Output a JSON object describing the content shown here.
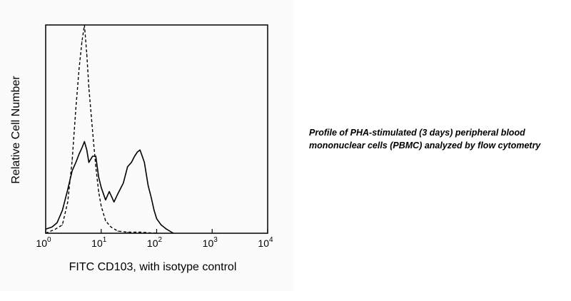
{
  "chart_data": {
    "type": "line",
    "title": "",
    "xlabel": "FITC CD103, with isotype control",
    "ylabel": "Relative Cell Number",
    "xscale": "log",
    "xlim": [
      1,
      10000
    ],
    "ylim": [
      0,
      100
    ],
    "x_ticks": [
      {
        "base": "10",
        "exp": "0",
        "value": 1
      },
      {
        "base": "10",
        "exp": "1",
        "value": 10
      },
      {
        "base": "10",
        "exp": "2",
        "value": 100
      },
      {
        "base": "10",
        "exp": "3",
        "value": 1000
      },
      {
        "base": "10",
        "exp": "4",
        "value": 10000
      }
    ],
    "grid": false,
    "legend": "none",
    "series": [
      {
        "style": "solid",
        "x": [
          1.0,
          1.3,
          1.6,
          2.0,
          2.5,
          3.0,
          3.5,
          4.0,
          4.5,
          5.0,
          5.5,
          6.0,
          7.0,
          8.0,
          9.0,
          10,
          12,
          14,
          17,
          20,
          25,
          30,
          35,
          40,
          45,
          50,
          55,
          60,
          70,
          80,
          90,
          100,
          120,
          150,
          200
        ],
        "y": [
          2,
          3,
          5,
          11,
          21,
          30,
          34,
          38,
          41,
          44,
          40,
          34,
          37,
          37,
          27,
          22,
          16,
          20,
          15,
          19,
          24,
          32,
          34,
          37,
          39,
          40,
          37,
          34,
          23,
          17,
          11,
          7,
          4,
          2,
          0
        ]
      },
      {
        "style": "dashed",
        "x": [
          1.0,
          1.5,
          2.0,
          2.5,
          3.0,
          3.5,
          4.0,
          4.5,
          5.0,
          5.5,
          6.0,
          7.0,
          8.0,
          9.0,
          10,
          12,
          15,
          20,
          30,
          50,
          100
        ],
        "y": [
          0,
          2,
          4,
          15,
          35,
          60,
          79,
          92,
          100,
          86,
          70,
          49,
          32,
          20,
          13,
          6,
          3,
          1,
          0.5,
          0.5,
          0
        ]
      }
    ]
  },
  "caption": {
    "line1": "Profile of PHA-stimulated (3 days) peripheral blood",
    "line2": "mononuclear cells (PBMC) analyzed by flow cytometry"
  }
}
